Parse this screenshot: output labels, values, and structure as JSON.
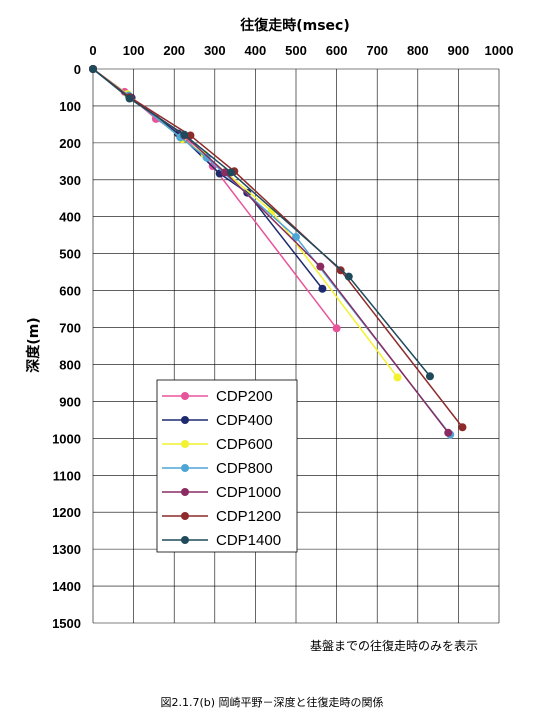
{
  "chart_data": {
    "type": "line",
    "xlabel": "往復走時(msec)",
    "ylabel": "深度(m)",
    "xlim": [
      0,
      1000
    ],
    "ylim": [
      0,
      1500
    ],
    "x_ticks": [
      "0",
      "100",
      "200",
      "300",
      "400",
      "500",
      "600",
      "700",
      "800",
      "900",
      "1000"
    ],
    "y_ticks": [
      "0",
      "100",
      "200",
      "300",
      "400",
      "500",
      "600",
      "700",
      "800",
      "900",
      "1000",
      "1100",
      "1200",
      "1300",
      "1400",
      "1500"
    ],
    "x_axis_position": "top",
    "y_axis_inverted": true,
    "grid": true,
    "legend_position": "lower-left",
    "note": "基盤までの往復走時のみを表示",
    "series": [
      {
        "name": "CDP200",
        "color": "#e8549a",
        "points": [
          [
            0,
            0
          ],
          [
            78,
            62
          ],
          [
            155,
            135
          ],
          [
            225,
            185
          ],
          [
            295,
            263
          ],
          [
            600,
            702
          ]
        ]
      },
      {
        "name": "CDP400",
        "color": "#1e2a6e",
        "points": [
          [
            0,
            0
          ],
          [
            95,
            78
          ],
          [
            210,
            175
          ],
          [
            312,
            283
          ],
          [
            380,
            335
          ],
          [
            565,
            595
          ]
        ]
      },
      {
        "name": "CDP600",
        "color": "#f2f230",
        "points": [
          [
            0,
            0
          ],
          [
            85,
            68
          ],
          [
            220,
            190
          ],
          [
            275,
            232
          ],
          [
            440,
            385
          ],
          [
            750,
            835
          ]
        ]
      },
      {
        "name": "CDP800",
        "color": "#4fa6d6",
        "points": [
          [
            0,
            0
          ],
          [
            88,
            72
          ],
          [
            215,
            185
          ],
          [
            280,
            240
          ],
          [
            500,
            455
          ],
          [
            880,
            990
          ]
        ]
      },
      {
        "name": "CDP1000",
        "color": "#8a2c62",
        "points": [
          [
            0,
            0
          ],
          [
            92,
            78
          ],
          [
            225,
            180
          ],
          [
            325,
            280
          ],
          [
            560,
            535
          ],
          [
            875,
            985
          ]
        ]
      },
      {
        "name": "CDP1200",
        "color": "#8e2a2a",
        "points": [
          [
            0,
            0
          ],
          [
            90,
            76
          ],
          [
            240,
            180
          ],
          [
            348,
            277
          ],
          [
            610,
            545
          ],
          [
            910,
            970
          ]
        ]
      },
      {
        "name": "CDP1400",
        "color": "#1f4a5c",
        "points": [
          [
            0,
            0
          ],
          [
            90,
            80
          ],
          [
            225,
            178
          ],
          [
            340,
            280
          ],
          [
            630,
            562
          ],
          [
            830,
            832
          ]
        ]
      }
    ]
  },
  "caption": "図2.1.7(b)  岡崎平野－深度と往復走時の関係"
}
